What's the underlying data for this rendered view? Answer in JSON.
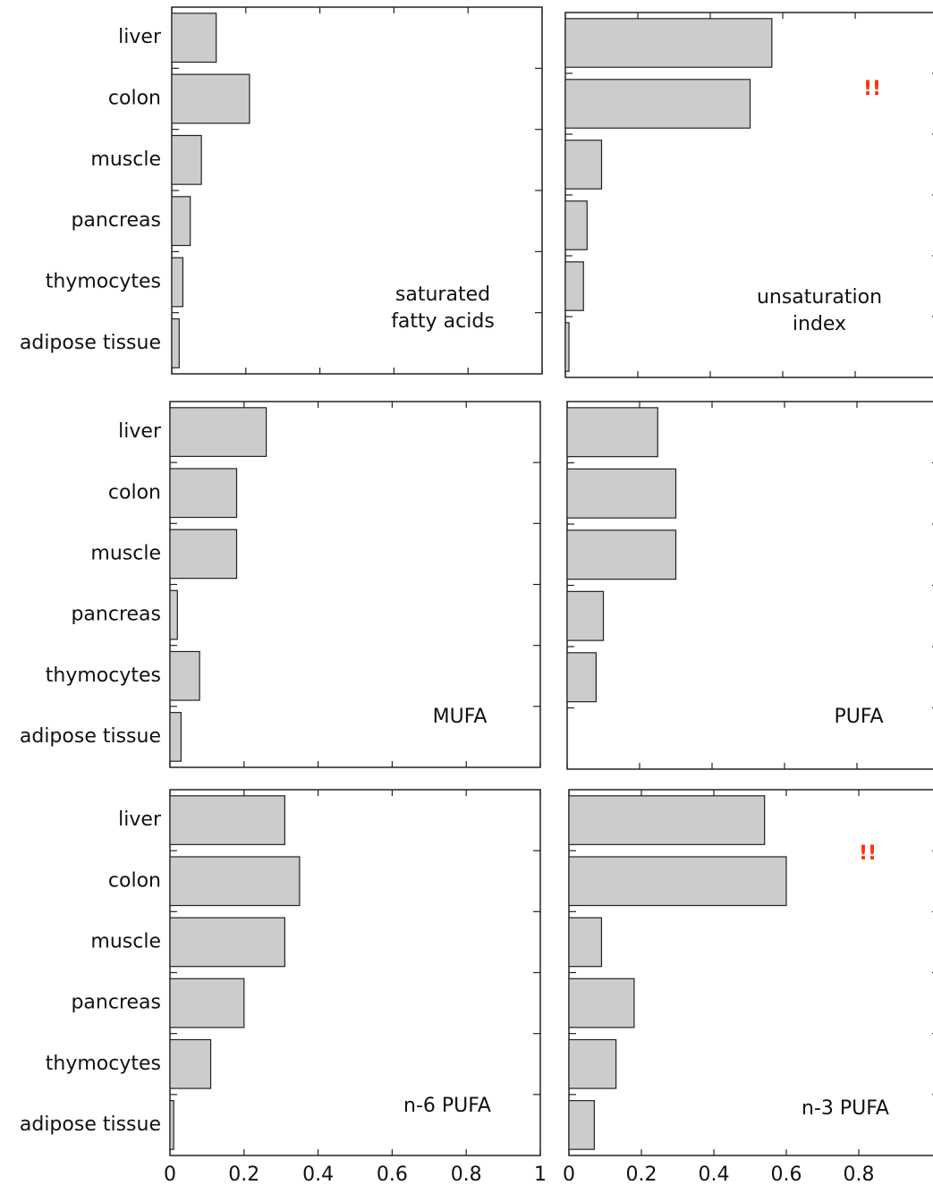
{
  "chart_data": [
    {
      "type": "bar",
      "categories": [
        "liver",
        "colon",
        "muscle",
        "pancreas",
        "thymocytes",
        "adipose tissue"
      ],
      "values": [
        0.12,
        0.21,
        0.08,
        0.05,
        0.03,
        0.02
      ],
      "color": "#cccccc",
      "xlim": [
        0,
        1
      ],
      "annotation": [
        "saturated",
        "fatty acids"
      ]
    },
    {
      "type": "bar",
      "categories": [
        null,
        null,
        null,
        null,
        null,
        null
      ],
      "values": [
        0.57,
        0.51,
        0.1,
        0.06,
        0.05,
        0.01
      ],
      "color": "#cccccc",
      "xlim": [
        0,
        1
      ],
      "annotation": [
        "unsaturation",
        "index"
      ],
      "marker": "!!",
      "marker_color": "#ff3300"
    },
    {
      "type": "bar",
      "categories": [
        "liver",
        "colon",
        "muscle",
        "pancreas",
        "thymocytes",
        "adipose tissue"
      ],
      "values": [
        0.26,
        0.18,
        0.18,
        0.02,
        0.08,
        0.03
      ],
      "color": "#cccccc",
      "xlim": [
        0,
        1
      ],
      "annotation": [
        "MUFA"
      ]
    },
    {
      "type": "bar",
      "categories": [
        null,
        null,
        null,
        null,
        null,
        null
      ],
      "values": [
        0.25,
        0.3,
        0.3,
        0.1,
        0.08,
        0
      ],
      "color": "#cccccc",
      "xlim": [
        0,
        1
      ],
      "annotation": [
        "PUFA"
      ]
    },
    {
      "type": "bar",
      "categories": [
        "liver",
        "colon",
        "muscle",
        "pancreas",
        "thymocytes",
        "adipose tissue"
      ],
      "values": [
        0.31,
        0.35,
        0.31,
        0.2,
        0.11,
        0.01
      ],
      "color": "#cccccc",
      "xlim": [
        0,
        1
      ],
      "xticks": [
        0,
        0.2,
        0.4,
        0.6,
        0.8,
        1
      ],
      "annotation": [
        "n-6 PUFA"
      ]
    },
    {
      "type": "bar",
      "categories": [
        null,
        null,
        null,
        null,
        null,
        null
      ],
      "values": [
        0.54,
        0.6,
        0.09,
        0.18,
        0.13,
        0.07
      ],
      "color": "#cccccc",
      "xlim": [
        0,
        1
      ],
      "xticks": [
        0,
        0.2,
        0.4,
        0.6,
        0.8
      ],
      "annotation": [
        "n-3 PUFA"
      ],
      "marker": "!!",
      "marker_color": "#ff3300"
    }
  ]
}
